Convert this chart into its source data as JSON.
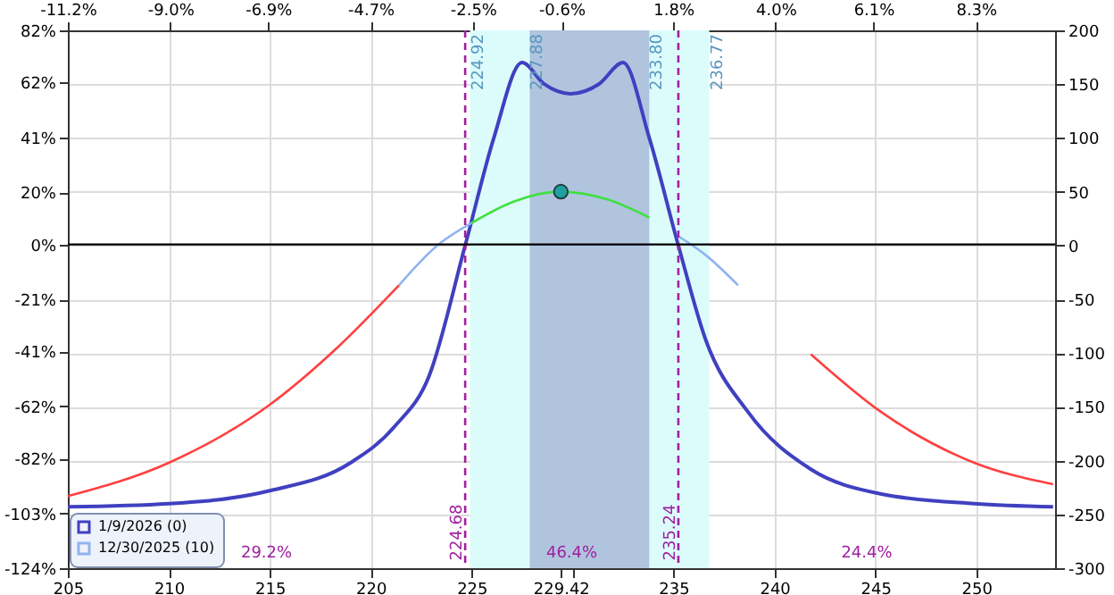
{
  "chart_data": {
    "type": "line",
    "xlim": [
      205,
      253.9
    ],
    "ylim": [
      -124,
      82
    ],
    "y2lim": [
      -300,
      200
    ],
    "x2lim": [
      -11.2,
      10.0
    ],
    "xticks": [
      205,
      210,
      215,
      220,
      225,
      {
        "value": 229.42,
        "label": "229.42"
      },
      {
        "value": 230,
        "label": null
      },
      235,
      240,
      245,
      250
    ],
    "x2ticks": [
      {
        "value": -11.2,
        "label": "-11.2%"
      },
      {
        "value": -9.0,
        "label": "-9.0%"
      },
      {
        "value": -6.9,
        "label": "-6.9%"
      },
      {
        "value": -4.7,
        "label": "-4.7%"
      },
      {
        "value": -2.5,
        "label": "-2.5%"
      },
      {
        "value": -0.6,
        "label": "-0.6%"
      },
      {
        "value": 1.8,
        "label": "1.8%"
      },
      {
        "value": 4.0,
        "label": "4.0%"
      },
      {
        "value": 6.1,
        "label": "6.1%"
      },
      {
        "value": 8.3,
        "label": "8.3%"
      }
    ],
    "yticks": [
      {
        "value": 82,
        "label": "82%"
      },
      {
        "value": 62,
        "label": "62%"
      },
      {
        "value": 41,
        "label": "41%"
      },
      {
        "value": 20,
        "label": "20%"
      },
      {
        "value": 0,
        "label": "0%"
      },
      {
        "value": -21,
        "label": "-21%"
      },
      {
        "value": -41,
        "label": "-41%"
      },
      {
        "value": -62,
        "label": "-62%"
      },
      {
        "value": -82,
        "label": "-82%"
      },
      {
        "value": -103,
        "label": "-103%"
      },
      {
        "value": -124,
        "label": "-124%"
      }
    ],
    "y2ticks": [
      200,
      150,
      100,
      50,
      0,
      -50,
      -100,
      -150,
      -200,
      -250,
      -300
    ],
    "grid": true,
    "legend": "bottom left",
    "line_style": "solid",
    "series": [
      {
        "name": "1/9/2026 (0)",
        "color": "#4040c0",
        "axis": "y2",
        "x": [
          205,
          210,
          215,
          219,
          221.2,
          222.9,
          224.68,
          226.1,
          227.5,
          228.6,
          229.9,
          231.3,
          232.5,
          233.8,
          235.24,
          236.6,
          238.7,
          241.8,
          245.3,
          249.9,
          253.8
        ],
        "values": [
          -243,
          -240,
          -228,
          -202,
          -168,
          -121,
          0,
          100,
          170,
          150,
          141,
          150,
          170,
          100,
          0,
          -88,
          -155,
          -208,
          -231,
          -240,
          -243
        ]
      },
      {
        "name": "12/30/2025 (10)",
        "color": "#90b4f0",
        "axis": "y2",
        "x": [
          221.4,
          223.3,
          225,
          233.8,
          235.2,
          236.6,
          238.2
        ],
        "values": [
          -37,
          0,
          21,
          null,
          9,
          -9,
          -37
        ]
      },
      {
        "color": "#ff4040",
        "axis": "y2",
        "x": [
          205,
          210,
          215,
          218.4,
          221.4,
          238.2,
          241.8,
          245.3,
          249.9,
          253.8
        ],
        "values": [
          -233,
          -202,
          -148,
          -94,
          -37,
          null,
          -101,
          -155,
          -202,
          -222
        ]
      },
      {
        "color": "#40e040",
        "axis": "y2",
        "x": [
          225,
          227.1,
          229.3,
          231.7,
          233.8
        ],
        "values": [
          21,
          41,
          50,
          43,
          26
        ]
      },
      {
        "type": "scatter",
        "marker": "circle",
        "color": "#20a0a0",
        "axis": "y2",
        "x": [
          229.42
        ],
        "values": [
          50
        ]
      }
    ],
    "bands": [
      {
        "axis": "x",
        "from": 224.92,
        "to": 236.77,
        "color": "#dcfcfc"
      },
      {
        "axis": "x",
        "from": 227.88,
        "to": 233.8,
        "color": "#b0c4de"
      }
    ],
    "ref_lines": [
      {
        "axis": "y",
        "value": 0,
        "color": "#000000",
        "line_style": "solid"
      },
      {
        "axis": "x",
        "value": 224.68,
        "label": "224.68",
        "color": "#a020a0",
        "line_style": "dashed"
      },
      {
        "axis": "x",
        "value": 235.24,
        "label": "235.24",
        "color": "#a020a0",
        "line_style": "dashed"
      }
    ],
    "annotations": [
      "224.92",
      "227.88",
      "233.80",
      "236.77",
      "29.2%",
      "46.4%",
      "24.4%"
    ]
  }
}
